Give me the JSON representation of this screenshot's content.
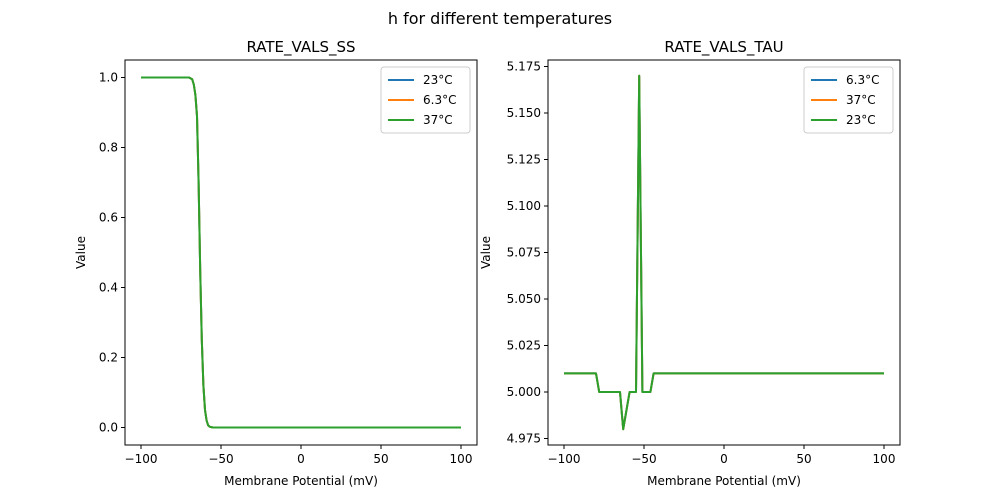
{
  "suptitle": "h for different temperatures",
  "colors": {
    "c0": "#1f77b4",
    "c1": "#ff7f0e",
    "c2": "#2ca02c"
  },
  "chart_data": [
    {
      "type": "line",
      "title": "RATE_VALS_SS",
      "xlabel": "Membrane Potential (mV)",
      "ylabel": "Value",
      "xlim": [
        -110,
        110
      ],
      "ylim": [
        -0.05,
        1.05
      ],
      "xticks": [
        -100,
        -50,
        0,
        50,
        100
      ],
      "xtick_labels": [
        "−100",
        "−50",
        "0",
        "50",
        "100"
      ],
      "yticks": [
        0.0,
        0.2,
        0.4,
        0.6,
        0.8,
        1.0
      ],
      "ytick_labels": [
        "0.0",
        "0.2",
        "0.4",
        "0.6",
        "0.8",
        "1.0"
      ],
      "legend": "top-right",
      "series": [
        {
          "name": "23°C",
          "color": "#1f77b4",
          "x": [
            -100,
            -70,
            -68,
            -67,
            -66,
            -65,
            -64,
            -63,
            -62,
            -61,
            -60,
            -59,
            -58,
            -57,
            -55,
            100
          ],
          "y": [
            1,
            1,
            0.995,
            0.98,
            0.95,
            0.89,
            0.7,
            0.45,
            0.25,
            0.12,
            0.05,
            0.02,
            0.006,
            0.002,
            0,
            0
          ]
        },
        {
          "name": "6.3°C",
          "color": "#ff7f0e",
          "x": [
            -100,
            -70,
            -68,
            -67,
            -66,
            -65,
            -64,
            -63,
            -62,
            -61,
            -60,
            -59,
            -58,
            -57,
            -55,
            100
          ],
          "y": [
            1,
            1,
            0.995,
            0.98,
            0.95,
            0.89,
            0.7,
            0.45,
            0.25,
            0.12,
            0.05,
            0.02,
            0.006,
            0.002,
            0,
            0
          ]
        },
        {
          "name": "37°C",
          "color": "#2ca02c",
          "x": [
            -100,
            -70,
            -68,
            -67,
            -66,
            -65,
            -64,
            -63,
            -62,
            -61,
            -60,
            -59,
            -58,
            -57,
            -55,
            100
          ],
          "y": [
            1,
            1,
            0.995,
            0.98,
            0.95,
            0.89,
            0.7,
            0.45,
            0.25,
            0.12,
            0.05,
            0.02,
            0.006,
            0.002,
            0,
            0
          ]
        }
      ]
    },
    {
      "type": "line",
      "title": "RATE_VALS_TAU",
      "xlabel": "Membrane Potential (mV)",
      "ylabel": "Value",
      "xlim": [
        -110,
        110
      ],
      "ylim": [
        4.9715,
        5.1785
      ],
      "xticks": [
        -100,
        -50,
        0,
        50,
        100
      ],
      "xtick_labels": [
        "−100",
        "−50",
        "0",
        "50",
        "100"
      ],
      "yticks": [
        4.975,
        5.0,
        5.025,
        5.05,
        5.075,
        5.1,
        5.125,
        5.15,
        5.175
      ],
      "ytick_labels": [
        "4.975",
        "5.000",
        "5.025",
        "5.050",
        "5.075",
        "5.100",
        "5.125",
        "5.150",
        "5.175"
      ],
      "legend": "top-right",
      "series": [
        {
          "name": "6.3°C",
          "color": "#1f77b4",
          "x": [
            -100,
            -80,
            -78,
            -65,
            -63,
            -59,
            -55,
            -53,
            -51,
            -46,
            -44,
            100
          ],
          "y": [
            5.01,
            5.01,
            5.0,
            5.0,
            4.98,
            5.0,
            5.0,
            5.17,
            5.0,
            5.0,
            5.01,
            5.01
          ]
        },
        {
          "name": "37°C",
          "color": "#ff7f0e",
          "x": [
            -100,
            -80,
            -78,
            -65,
            -63,
            -59,
            -55,
            -53,
            -51,
            -46,
            -44,
            100
          ],
          "y": [
            5.01,
            5.01,
            5.0,
            5.0,
            4.98,
            5.0,
            5.0,
            5.17,
            5.0,
            5.0,
            5.01,
            5.01
          ]
        },
        {
          "name": "23°C",
          "color": "#2ca02c",
          "x": [
            -100,
            -80,
            -78,
            -65,
            -63,
            -59,
            -55,
            -53,
            -51,
            -46,
            -44,
            100
          ],
          "y": [
            5.01,
            5.01,
            5.0,
            5.0,
            4.98,
            5.0,
            5.0,
            5.17,
            5.0,
            5.0,
            5.01,
            5.01
          ]
        }
      ]
    }
  ]
}
